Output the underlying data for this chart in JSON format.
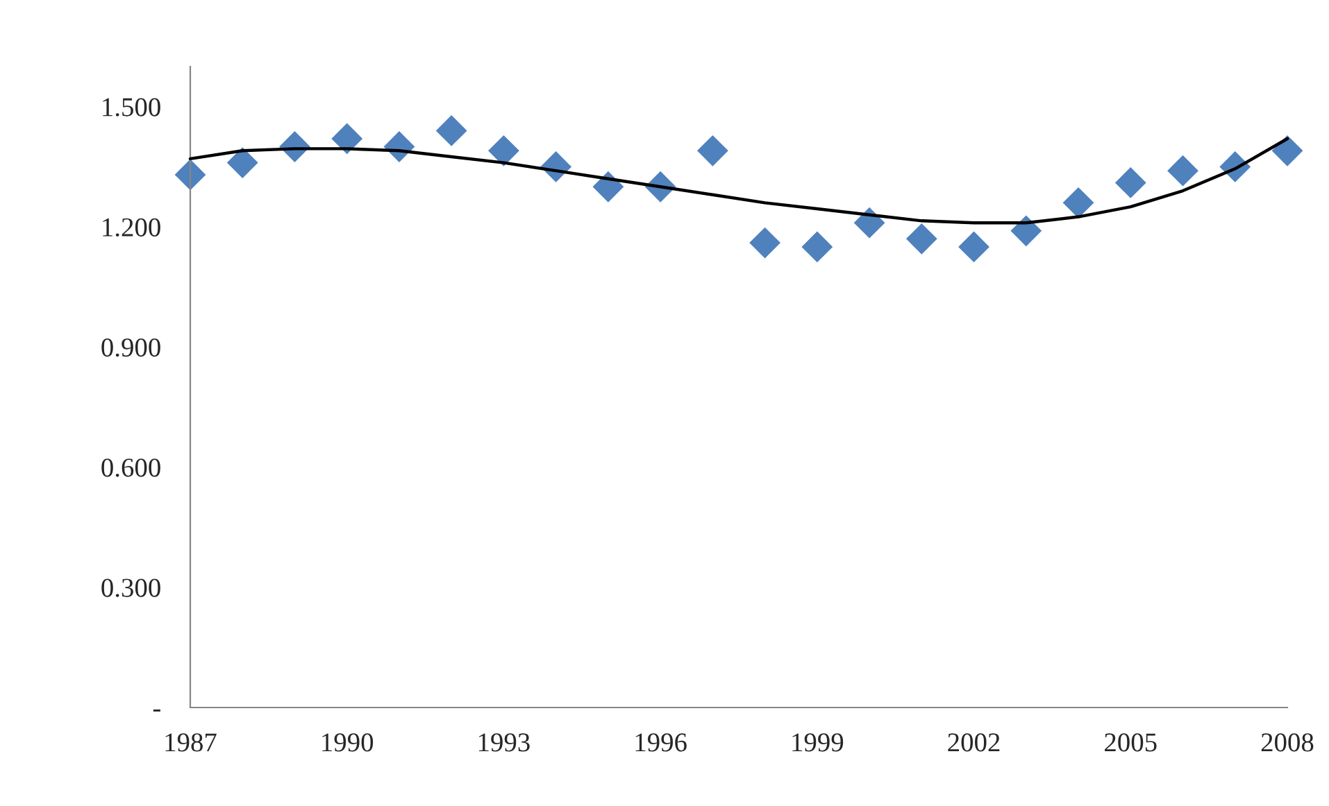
{
  "chart_data": {
    "type": "scatter",
    "x": [
      1987,
      1988,
      1989,
      1990,
      1991,
      1992,
      1993,
      1994,
      1995,
      1996,
      1997,
      1998,
      1999,
      2000,
      2001,
      2002,
      2003,
      2004,
      2005,
      2006,
      2007,
      2008
    ],
    "series": [
      {
        "color": "#4f81bd",
        "marker": "diamond",
        "values": [
          1.33,
          1.36,
          1.4,
          1.42,
          1.4,
          1.44,
          1.39,
          1.35,
          1.3,
          1.3,
          1.39,
          1.16,
          1.15,
          1.21,
          1.17,
          1.15,
          1.19,
          1.26,
          1.31,
          1.34,
          1.35,
          1.39
        ]
      },
      {
        "type": "line",
        "color": "#000000",
        "marker": "none",
        "line_style": "solid",
        "values": [
          1.37,
          1.39,
          1.395,
          1.395,
          1.39,
          1.375,
          1.36,
          1.34,
          1.32,
          1.3,
          1.28,
          1.26,
          1.245,
          1.23,
          1.215,
          1.21,
          1.21,
          1.225,
          1.25,
          1.29,
          1.345,
          1.42
        ]
      }
    ],
    "xlim": [
      1987,
      2008
    ],
    "xticks": [
      1987,
      1990,
      1993,
      1996,
      1999,
      2002,
      2005,
      2008
    ],
    "ylim": [
      0,
      1.6
    ],
    "yticks": [
      {
        "value": 0,
        "label": "-"
      },
      {
        "value": 0.3,
        "label": "0.300"
      },
      {
        "value": 0.6,
        "label": "0.600"
      },
      {
        "value": 0.9,
        "label": "0.900"
      },
      {
        "value": 1.2,
        "label": "1.200"
      },
      {
        "value": 1.5,
        "label": "1.500"
      }
    ],
    "grid": false,
    "legend": false
  }
}
